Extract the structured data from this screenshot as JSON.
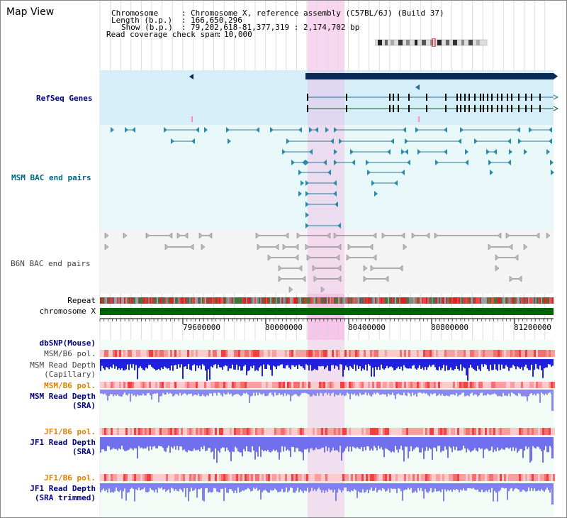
{
  "page": {
    "title": "Map View"
  },
  "info": {
    "chromosome_key": "Chromosome",
    "chromosome_val": "Chromosome X, reference assembly (C57BL/6J) (Build 37)",
    "length_key": "Length (b.p.)",
    "length_val": "166,650,296",
    "show_key": "Show (b.p.)",
    "show_val": "79,202,618-81,377,319 : 2,174,702 bp",
    "coverage_key": "Read coverage check span",
    "coverage_val": "10,000"
  },
  "tracks": {
    "refseq": "RefSeq Genes",
    "msm_bac": "MSM BAC end pairs",
    "b6n_bac": "B6N BAC end pairs",
    "repeat": "Repeat",
    "chromosome": "chromosome X",
    "dbsnp": "dbSNP(Mouse)",
    "msm_b6_pol_1": "MSM/B6 pol.",
    "msm_read_depth_cap_1": "MSM Read Depth",
    "msm_read_depth_cap_2": "(Capillary)",
    "msm_b6_pol_2": "MSM/B6 pol.",
    "msm_read_depth_sra_1": "MSM Read Depth",
    "msm_read_depth_sra_2": "(SRA)",
    "jf1_b6_pol_1": "JF1/B6 pol.",
    "jf1_read_depth_sra_1": "JF1 Read Depth",
    "jf1_read_depth_sra_2": "(SRA)",
    "jf1_b6_pol_2": "JF1/B6 pol.",
    "jf1_read_depth_trim_1": "JF1 Read Depth",
    "jf1_read_depth_trim_2": "(SRA trimmed)"
  },
  "axis": {
    "ticks": [
      "79600000",
      "80000000",
      "80400000",
      "80800000",
      "81200000"
    ]
  },
  "colors": {
    "highlight": "#f8d6f0",
    "refseq_bg": "#d6eef8",
    "bac_bg": "#e8f8f8",
    "b6n_bg": "#f4f4f4",
    "label_blue": "#000080",
    "label_teal": "#006680",
    "label_gray": "#404040",
    "label_orange": "#e08000",
    "chromosome_green": "#006400",
    "depth_blue": "#2020e0",
    "depth_light": "#8888f0"
  }
}
